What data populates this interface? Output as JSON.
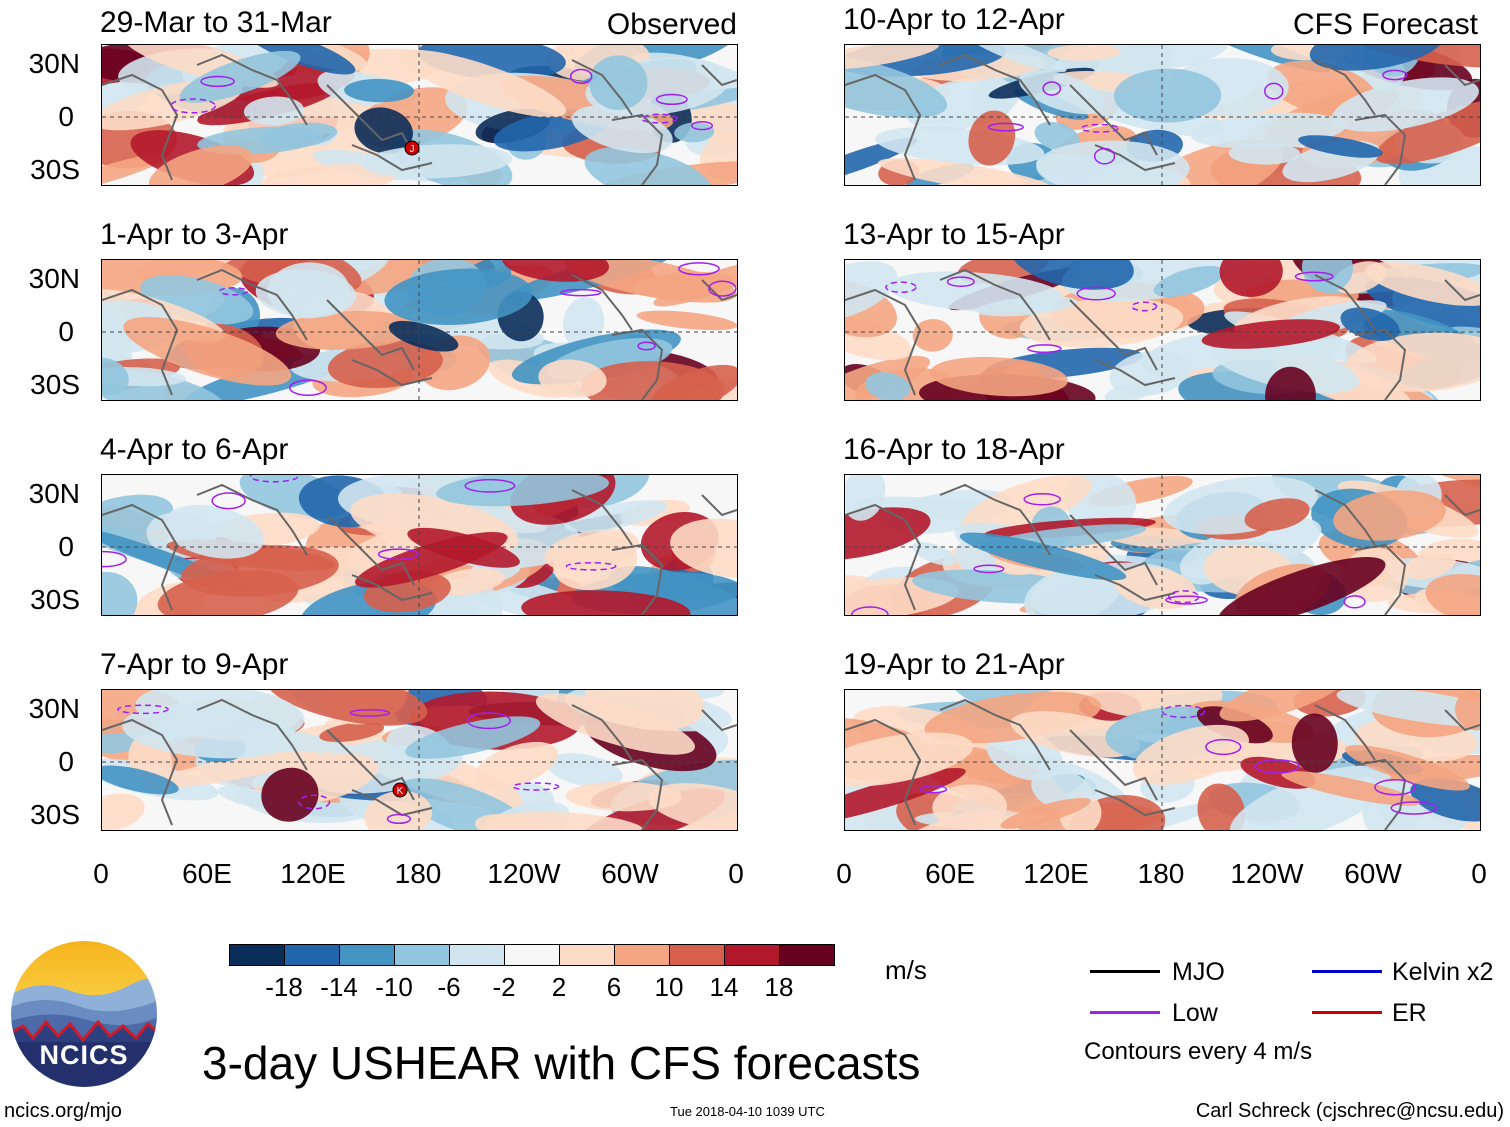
{
  "panels": [
    {
      "title": "29-Mar to 31-Mar",
      "tag": "Observed"
    },
    {
      "title": "10-Apr to 12-Apr",
      "tag": "CFS Forecast"
    },
    {
      "title": "1-Apr to 3-Apr",
      "tag": ""
    },
    {
      "title": "13-Apr to 15-Apr",
      "tag": ""
    },
    {
      "title": "4-Apr to 6-Apr",
      "tag": ""
    },
    {
      "title": "16-Apr to 18-Apr",
      "tag": ""
    },
    {
      "title": "7-Apr to 9-Apr",
      "tag": ""
    },
    {
      "title": "19-Apr to 21-Apr",
      "tag": ""
    }
  ],
  "lat_labels": [
    "30N",
    "0",
    "30S"
  ],
  "lon_labels": [
    "0",
    "60E",
    "120E",
    "180",
    "120W",
    "60W",
    "0"
  ],
  "colorbar": {
    "colors": [
      "#0b2d5a",
      "#2166ac",
      "#4393c3",
      "#92c5de",
      "#d1e5f0",
      "#f7f7f7",
      "#fddbc7",
      "#f4a582",
      "#d6604d",
      "#b2182b",
      "#67001f"
    ],
    "labels": [
      "-18",
      "-14",
      "-10",
      "-6",
      "-2",
      "2",
      "6",
      "10",
      "14",
      "18"
    ],
    "units": "m/s"
  },
  "legend": {
    "mjo": "MJO",
    "low": "Low",
    "kelvin": "Kelvin x2",
    "er": "ER",
    "contours_note": "Contours every 4 m/s",
    "colors": {
      "mjo": "#000000",
      "low": "#a020f0",
      "kelvin": "#0000cd",
      "er": "#cc0000"
    }
  },
  "logo": {
    "text": "NCICS"
  },
  "main_title": "3-day USHEAR with CFS forecasts",
  "footer": {
    "url": "ncics.org/mjo",
    "timestamp": "Tue 2018-04-10 1039 UTC",
    "credit": "Carl Schreck (cjschrec@ncsu.edu)"
  },
  "storm_markers": [
    {
      "panel": 0,
      "symbol": "J"
    },
    {
      "panel": 6,
      "symbol": "K"
    }
  ]
}
